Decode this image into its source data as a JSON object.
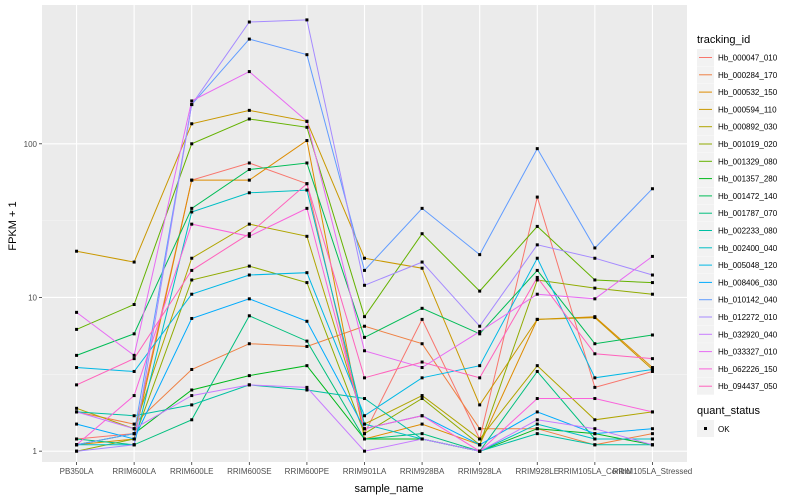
{
  "chart_data": {
    "type": "line",
    "xlabel": "sample_name",
    "ylabel": "FPKM + 1",
    "yscale": "log10",
    "ylim": [
      0.85,
      800
    ],
    "yticks": [
      1,
      10,
      100
    ],
    "ytick_labels": [
      "1",
      "10",
      "100"
    ],
    "grid": true,
    "legend_position": "right",
    "categories": [
      "PB350LA",
      "RRIM600LA",
      "RRIM600LE",
      "RRIM600SE",
      "RRIM600PE",
      "RRIM901LA",
      "RRIM928BA",
      "RRIM928LA",
      "RRIM928LE",
      "RRIM105LA_Control",
      "RRIM105LA_Stressed"
    ],
    "legend_title": "tracking_id",
    "series": [
      {
        "name": "Hb_000047_010",
        "color": "#F8766D",
        "values": [
          1.2,
          1.3,
          58,
          75,
          55,
          1.3,
          7.2,
          1.2,
          45,
          2.6,
          3.3
        ]
      },
      {
        "name": "Hb_000284_170",
        "color": "#EE8043",
        "values": [
          1.8,
          1.5,
          3.4,
          5.0,
          4.8,
          6.5,
          5.0,
          1.4,
          1.4,
          1.1,
          1.3
        ]
      },
      {
        "name": "Hb_000532_150",
        "color": "#DE8C00",
        "values": [
          1.1,
          1.2,
          58,
          58,
          105,
          1.2,
          1.5,
          1.1,
          7.2,
          7.5,
          3.5
        ]
      },
      {
        "name": "Hb_000594_110",
        "color": "#C99800",
        "values": [
          20,
          17,
          135,
          165,
          140,
          18,
          15.5,
          2.0,
          7.2,
          7.4,
          3.4
        ]
      },
      {
        "name": "Hb_000892_030",
        "color": "#B0A500",
        "values": [
          1.9,
          1.4,
          18,
          30,
          25,
          1.5,
          2.3,
          1.2,
          3.6,
          1.6,
          1.8
        ]
      },
      {
        "name": "Hb_001019_020",
        "color": "#90AB00",
        "values": [
          1.0,
          1.2,
          13,
          16,
          12.5,
          1.3,
          2.2,
          1.1,
          13,
          11.5,
          10.5
        ]
      },
      {
        "name": "Hb_001329_080",
        "color": "#64B200",
        "values": [
          6.2,
          9.0,
          100,
          145,
          128,
          7.5,
          26,
          11,
          29,
          13,
          12.5
        ]
      },
      {
        "name": "Hb_001357_280",
        "color": "#00B81B",
        "values": [
          1.1,
          1.3,
          2.5,
          3.1,
          3.6,
          1.2,
          1.2,
          1.0,
          1.4,
          1.3,
          1.1
        ]
      },
      {
        "name": "Hb_001472_140",
        "color": "#00BC56",
        "values": [
          4.2,
          5.8,
          38,
          68,
          75,
          5.5,
          8.5,
          5.8,
          15,
          5.0,
          5.7
        ]
      },
      {
        "name": "Hb_001787_070",
        "color": "#00BF7D",
        "values": [
          1.2,
          1.1,
          1.6,
          7.6,
          5.2,
          1.2,
          1.3,
          1.0,
          3.3,
          1.2,
          1.2
        ]
      },
      {
        "name": "Hb_002233_080",
        "color": "#00C0A3",
        "values": [
          1.8,
          1.7,
          2.0,
          2.7,
          2.5,
          2.2,
          1.2,
          1.0,
          1.3,
          1.1,
          1.1
        ]
      },
      {
        "name": "Hb_002400_040",
        "color": "#00BFC4",
        "values": [
          1.1,
          1.1,
          36,
          48,
          50,
          1.5,
          1.2,
          1.0,
          1.5,
          1.2,
          1.2
        ]
      },
      {
        "name": "Hb_005048_120",
        "color": "#00B8E5",
        "values": [
          3.5,
          3.3,
          10.5,
          14,
          14.5,
          1.7,
          3.0,
          3.6,
          18,
          3.0,
          3.4
        ]
      },
      {
        "name": "Hb_008406_030",
        "color": "#00ABFD",
        "values": [
          1.5,
          1.2,
          7.3,
          9.8,
          7.0,
          1.4,
          1.7,
          1.1,
          1.8,
          1.3,
          1.4
        ]
      },
      {
        "name": "Hb_010142_040",
        "color": "#619CFF",
        "values": [
          1.1,
          1.3,
          180,
          480,
          380,
          15,
          38,
          19,
          93,
          21,
          51
        ]
      },
      {
        "name": "Hb_012272_010",
        "color": "#A58AFF",
        "values": [
          1.0,
          1.1,
          180,
          620,
          640,
          12,
          17,
          6.5,
          22,
          18,
          14
        ]
      },
      {
        "name": "Hb_032920_040",
        "color": "#C77CFF",
        "values": [
          1.8,
          1.4,
          2.3,
          2.7,
          2.6,
          1.0,
          1.2,
          1.0,
          1.6,
          1.4,
          1.1
        ]
      },
      {
        "name": "Hb_033327_010",
        "color": "#E76BF3",
        "values": [
          8.0,
          4.2,
          190,
          295,
          140,
          4.5,
          3.5,
          6.0,
          10.5,
          9.8,
          18.5
        ]
      },
      {
        "name": "Hb_062226_150",
        "color": "#FA62DB",
        "values": [
          1.1,
          2.3,
          30,
          25,
          38,
          1.4,
          1.7,
          1.0,
          2.2,
          2.2,
          1.8
        ]
      },
      {
        "name": "Hb_094437_050",
        "color": "#FF62BC",
        "values": [
          2.7,
          4.0,
          15,
          26,
          55,
          3.0,
          3.8,
          3.0,
          13.5,
          4.3,
          4.0
        ]
      }
    ],
    "quant_status": {
      "title": "quant_status",
      "entries": [
        "OK"
      ]
    }
  }
}
